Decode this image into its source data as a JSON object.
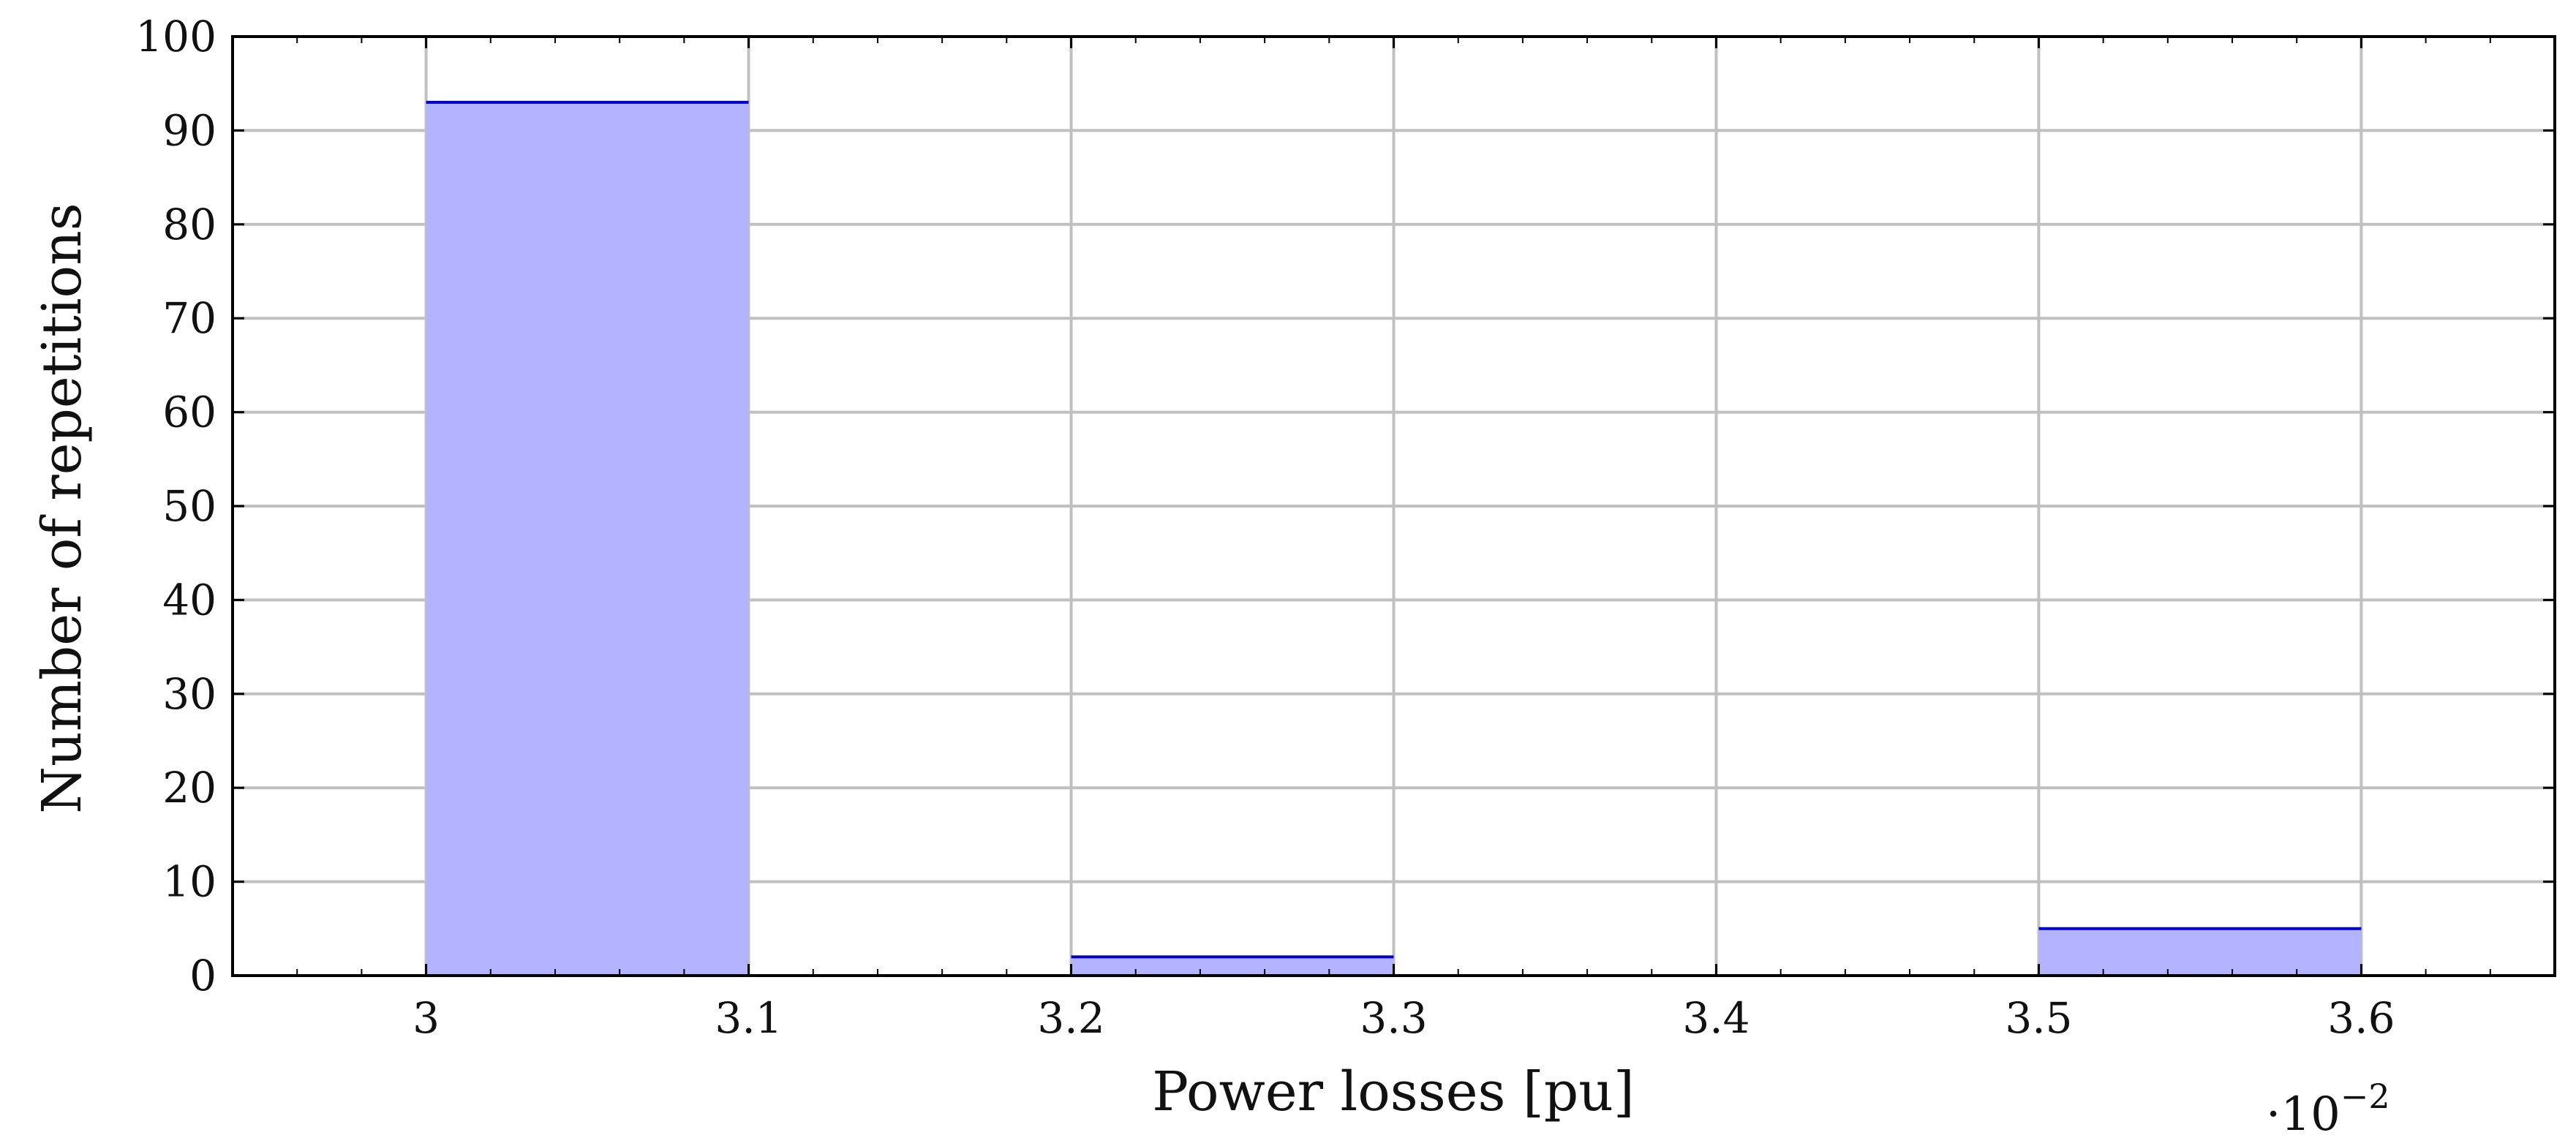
{
  "chart_data": {
    "type": "bar",
    "subtype": "histogram",
    "xlabel": "Power losses [pu]",
    "ylabel": "Number of repetitions",
    "x_scale_note": "·10",
    "x_scale_exponent": "−2",
    "xlim": [
      2.94,
      3.66
    ],
    "ylim": [
      0,
      100
    ],
    "xticks": [
      3,
      3.1,
      3.2,
      3.3,
      3.4,
      3.5,
      3.6
    ],
    "xtick_labels": [
      "3",
      "3.1",
      "3.2",
      "3.3",
      "3.4",
      "3.5",
      "3.6"
    ],
    "yticks": [
      0,
      10,
      20,
      30,
      40,
      50,
      60,
      70,
      80,
      90,
      100
    ],
    "ytick_labels": [
      "0",
      "10",
      "20",
      "30",
      "40",
      "50",
      "60",
      "70",
      "80",
      "90",
      "100"
    ],
    "bins": [
      {
        "x0": 3.0,
        "x1": 3.1,
        "count": 93
      },
      {
        "x0": 3.1,
        "x1": 3.2,
        "count": 0
      },
      {
        "x0": 3.2,
        "x1": 3.3,
        "count": 2
      },
      {
        "x0": 3.3,
        "x1": 3.4,
        "count": 0
      },
      {
        "x0": 3.4,
        "x1": 3.5,
        "count": 0
      },
      {
        "x0": 3.5,
        "x1": 3.6,
        "count": 5
      }
    ],
    "grid": true,
    "colors": {
      "bar_fill": "#b3b3ff",
      "bar_edge": "#0000cc",
      "grid": "#c0c0c0",
      "axis": "#000000"
    }
  }
}
